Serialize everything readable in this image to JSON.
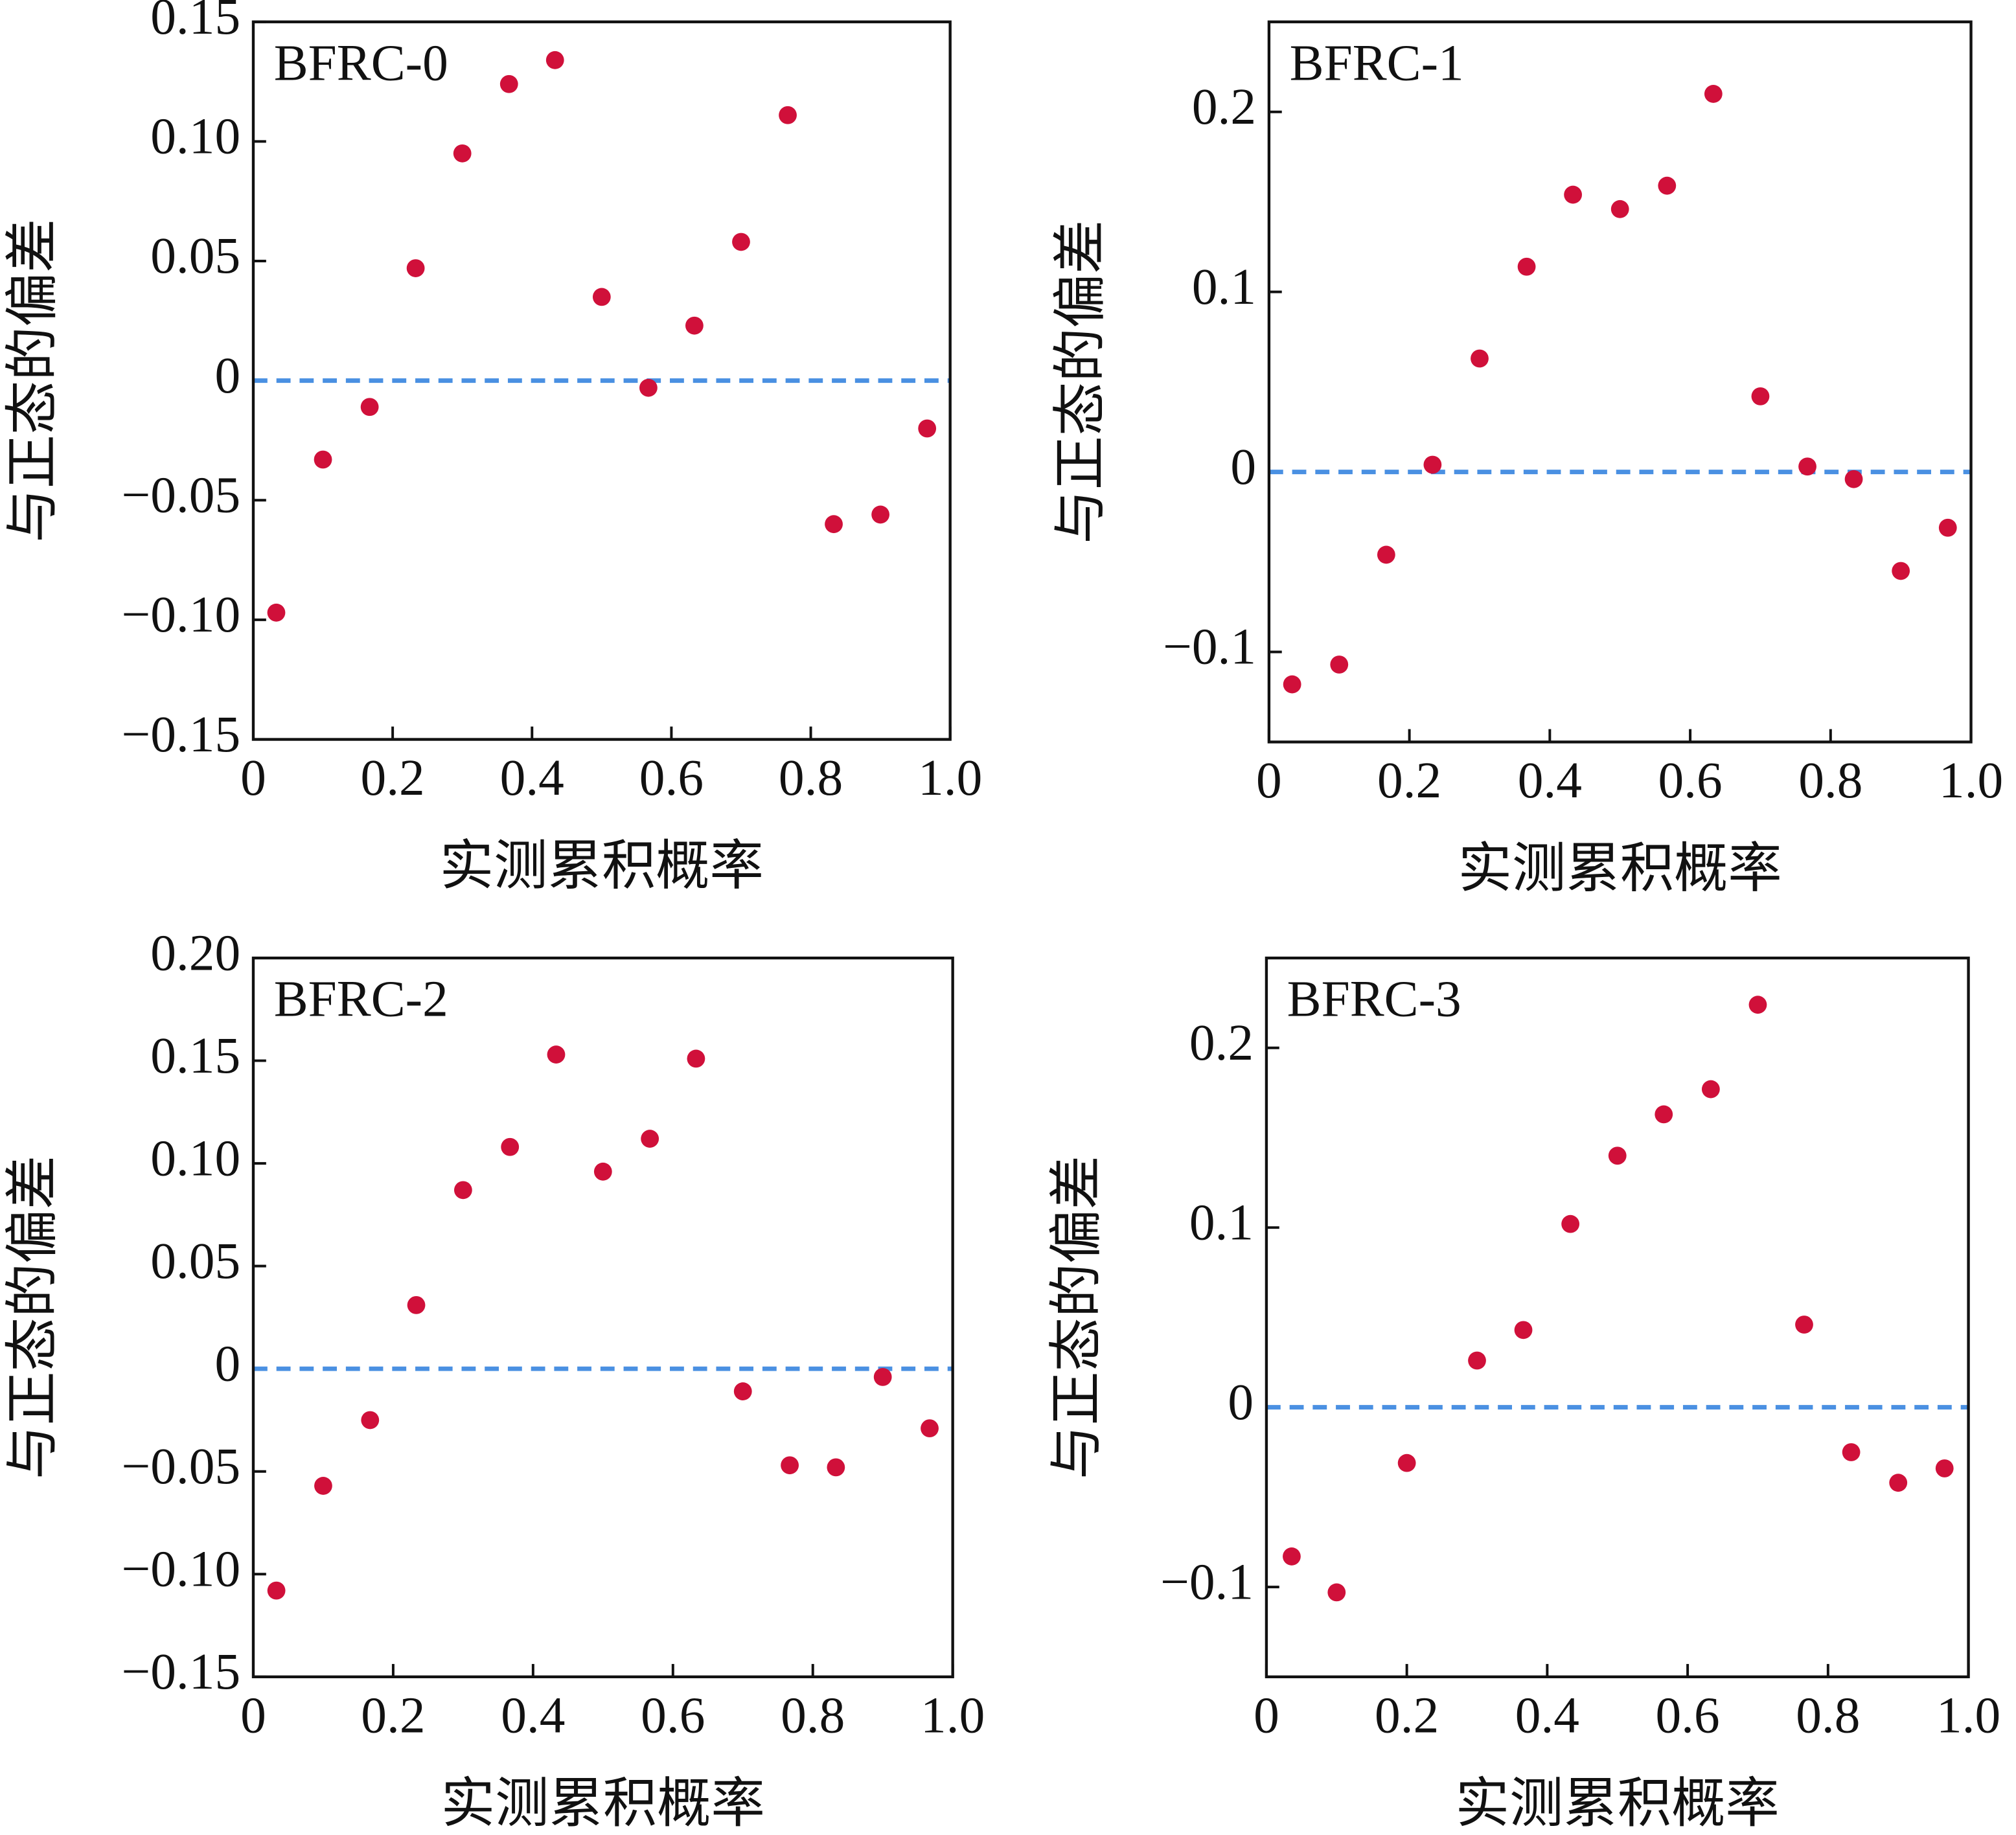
{
  "chart_data": [
    {
      "type": "scatter",
      "title": "BFRC-0",
      "xlabel": "实测累积概率",
      "ylabel": "与正态的偏差",
      "x": [
        0.033,
        0.1,
        0.167,
        0.233,
        0.3,
        0.367,
        0.433,
        0.5,
        0.567,
        0.633,
        0.7,
        0.767,
        0.833,
        0.9,
        0.967
      ],
      "series": [
        {
          "color": "#d0103a",
          "values": [
            -0.097,
            -0.033,
            -0.011,
            0.047,
            0.095,
            0.124,
            0.134,
            0.035,
            -0.003,
            0.023,
            0.058,
            0.111,
            -0.06,
            -0.056,
            -0.02
          ]
        }
      ],
      "xlim": [
        0,
        1
      ],
      "xticks": [
        0,
        0.2,
        0.4,
        0.6,
        0.8,
        {
          "value": 1,
          "label": "1.0"
        }
      ],
      "ylim": [
        -0.15,
        0.15
      ],
      "yticks": [
        {
          "value": -0.15,
          "label": "−0.15"
        },
        {
          "value": -0.1,
          "label": "−0.10"
        },
        {
          "value": -0.05,
          "label": "−0.05"
        },
        0,
        0.05,
        {
          "value": 0.1,
          "label": "0.10"
        },
        0.15
      ],
      "hline": {
        "y": 0,
        "color": "#4a90e2"
      }
    },
    {
      "type": "scatter",
      "title": "BFRC-1",
      "xlabel": "实测累积概率",
      "ylabel": "与正态的偏差",
      "x": [
        0.033,
        0.1,
        0.167,
        0.233,
        0.3,
        0.367,
        0.433,
        0.5,
        0.567,
        0.633,
        0.7,
        0.767,
        0.833,
        0.9,
        0.967
      ],
      "series": [
        {
          "color": "#d0103a",
          "values": [
            -0.118,
            -0.107,
            -0.046,
            0.004,
            0.063,
            0.114,
            0.154,
            0.146,
            0.159,
            0.21,
            0.042,
            0.003,
            -0.004,
            -0.055,
            -0.031
          ]
        }
      ],
      "xlim": [
        0,
        1
      ],
      "xticks": [
        0,
        0.2,
        0.4,
        0.6,
        0.8,
        {
          "value": 1,
          "label": "1.0"
        }
      ],
      "ylim": [
        -0.15,
        0.25
      ],
      "yticks": [
        {
          "value": -0.1,
          "label": "−0.1"
        },
        0,
        0.1,
        0.2
      ],
      "hline": {
        "y": 0,
        "color": "#4a90e2"
      }
    },
    {
      "type": "scatter",
      "title": "BFRC-2",
      "xlabel": "实测累积概率",
      "ylabel": "与正态的偏差",
      "x": [
        0.033,
        0.1,
        0.167,
        0.233,
        0.3,
        0.367,
        0.433,
        0.5,
        0.567,
        0.633,
        0.7,
        0.767,
        0.833,
        0.9,
        0.967
      ],
      "series": [
        {
          "color": "#d0103a",
          "values": [
            -0.108,
            -0.057,
            -0.025,
            0.031,
            0.087,
            0.108,
            0.153,
            0.096,
            0.112,
            0.151,
            -0.011,
            -0.047,
            -0.048,
            -0.004,
            -0.029
          ]
        }
      ],
      "xlim": [
        0,
        1
      ],
      "xticks": [
        0,
        0.2,
        0.4,
        0.6,
        0.8,
        {
          "value": 1,
          "label": "1.0"
        }
      ],
      "ylim": [
        -0.15,
        0.2
      ],
      "yticks": [
        {
          "value": -0.15,
          "label": "−0.15"
        },
        {
          "value": -0.1,
          "label": "−0.10"
        },
        {
          "value": -0.05,
          "label": "−0.05"
        },
        0,
        0.05,
        {
          "value": 0.1,
          "label": "0.10"
        },
        0.15,
        {
          "value": 0.2,
          "label": "0.20"
        }
      ],
      "hline": {
        "y": 0,
        "color": "#4a90e2"
      }
    },
    {
      "type": "scatter",
      "title": "BFRC-3",
      "xlabel": "实测累积概率",
      "ylabel": "与正态的偏差",
      "x": [
        0.036,
        0.1,
        0.2,
        0.3,
        0.366,
        0.433,
        0.5,
        0.566,
        0.633,
        0.7,
        0.766,
        0.833,
        0.9,
        0.966
      ],
      "series": [
        {
          "color": "#d0103a",
          "values": [
            -0.083,
            -0.103,
            -0.031,
            0.026,
            0.043,
            0.102,
            0.14,
            0.163,
            0.177,
            0.224,
            0.046,
            -0.025,
            -0.042,
            -0.034
          ]
        }
      ],
      "xlim": [
        0,
        1
      ],
      "xticks": [
        0,
        0.2,
        0.4,
        0.6,
        0.8,
        {
          "value": 1,
          "label": "1.0"
        }
      ],
      "ylim": [
        -0.15,
        0.25
      ],
      "yticks": [
        {
          "value": -0.1,
          "label": "−0.1"
        },
        0,
        0.1,
        0.2
      ],
      "hline": {
        "y": 0,
        "color": "#4a90e2"
      }
    }
  ]
}
